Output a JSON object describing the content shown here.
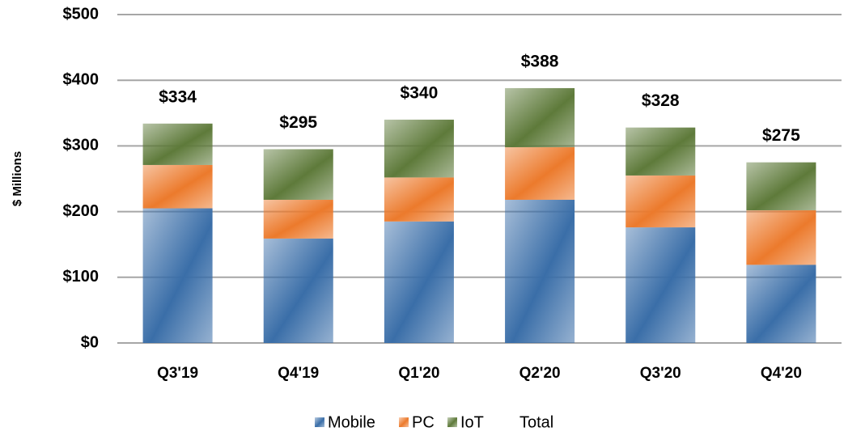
{
  "chart_data": {
    "type": "stacked-bar",
    "y_label": "$ Millions",
    "categories": [
      "Q3'19",
      "Q4'19",
      "Q1'20",
      "Q2'20",
      "Q3'20",
      "Q4'20"
    ],
    "series": [
      {
        "name": "Mobile",
        "color": "#3a6ea8",
        "values": [
          205,
          159,
          185,
          218,
          176,
          119
        ]
      },
      {
        "name": "PC",
        "color": "#ec7a2c",
        "values": [
          66,
          59,
          67,
          80,
          79,
          83
        ]
      },
      {
        "name": "IoT",
        "color": "#5e7a3a",
        "values": [
          63,
          77,
          88,
          90,
          73,
          73
        ]
      },
      {
        "name": "Total",
        "color": "none",
        "values": [
          334,
          295,
          340,
          388,
          328,
          275
        ],
        "value_labels": [
          "$334",
          "$295",
          "$340",
          "$388",
          "$328",
          "$275"
        ]
      }
    ],
    "ylim": [
      0,
      500
    ],
    "yticks": [
      {
        "value": 0,
        "label": "$0"
      },
      {
        "value": 100,
        "label": "$100"
      },
      {
        "value": 200,
        "label": "$200"
      },
      {
        "value": 300,
        "label": "$300"
      },
      {
        "value": 400,
        "label": "$400"
      },
      {
        "value": 500,
        "label": "$500"
      }
    ],
    "grid": true,
    "legend": "bottom"
  }
}
